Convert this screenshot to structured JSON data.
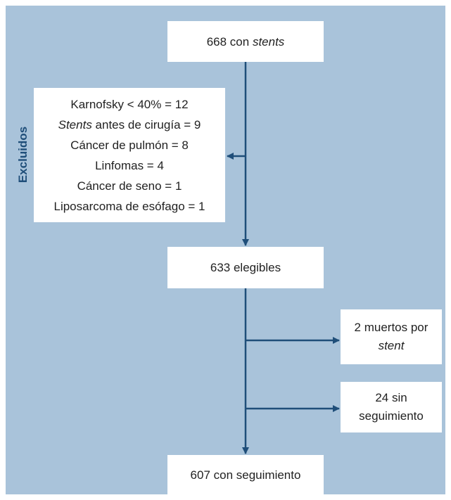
{
  "start": {
    "text": "668 con ",
    "italic": "stents"
  },
  "excluded": {
    "label": "Excluidos",
    "items": [
      {
        "text": "Karnofsky < 40% = 12"
      },
      {
        "italic": "Stents",
        "text": " antes de cirugía = 9"
      },
      {
        "text": "Cáncer de pulmón = 8"
      },
      {
        "text": "Linfomas = 4"
      },
      {
        "text": "Cáncer de seno = 1"
      },
      {
        "text": "Liposarcoma de esófago = 1"
      }
    ]
  },
  "eligible": {
    "text": "633 elegibles"
  },
  "deaths": {
    "text": "2 muertos por",
    "italic": "stent"
  },
  "lost": {
    "lines": [
      "24 sin",
      "seguimiento"
    ]
  },
  "final": {
    "text": "607 con seguimiento"
  }
}
